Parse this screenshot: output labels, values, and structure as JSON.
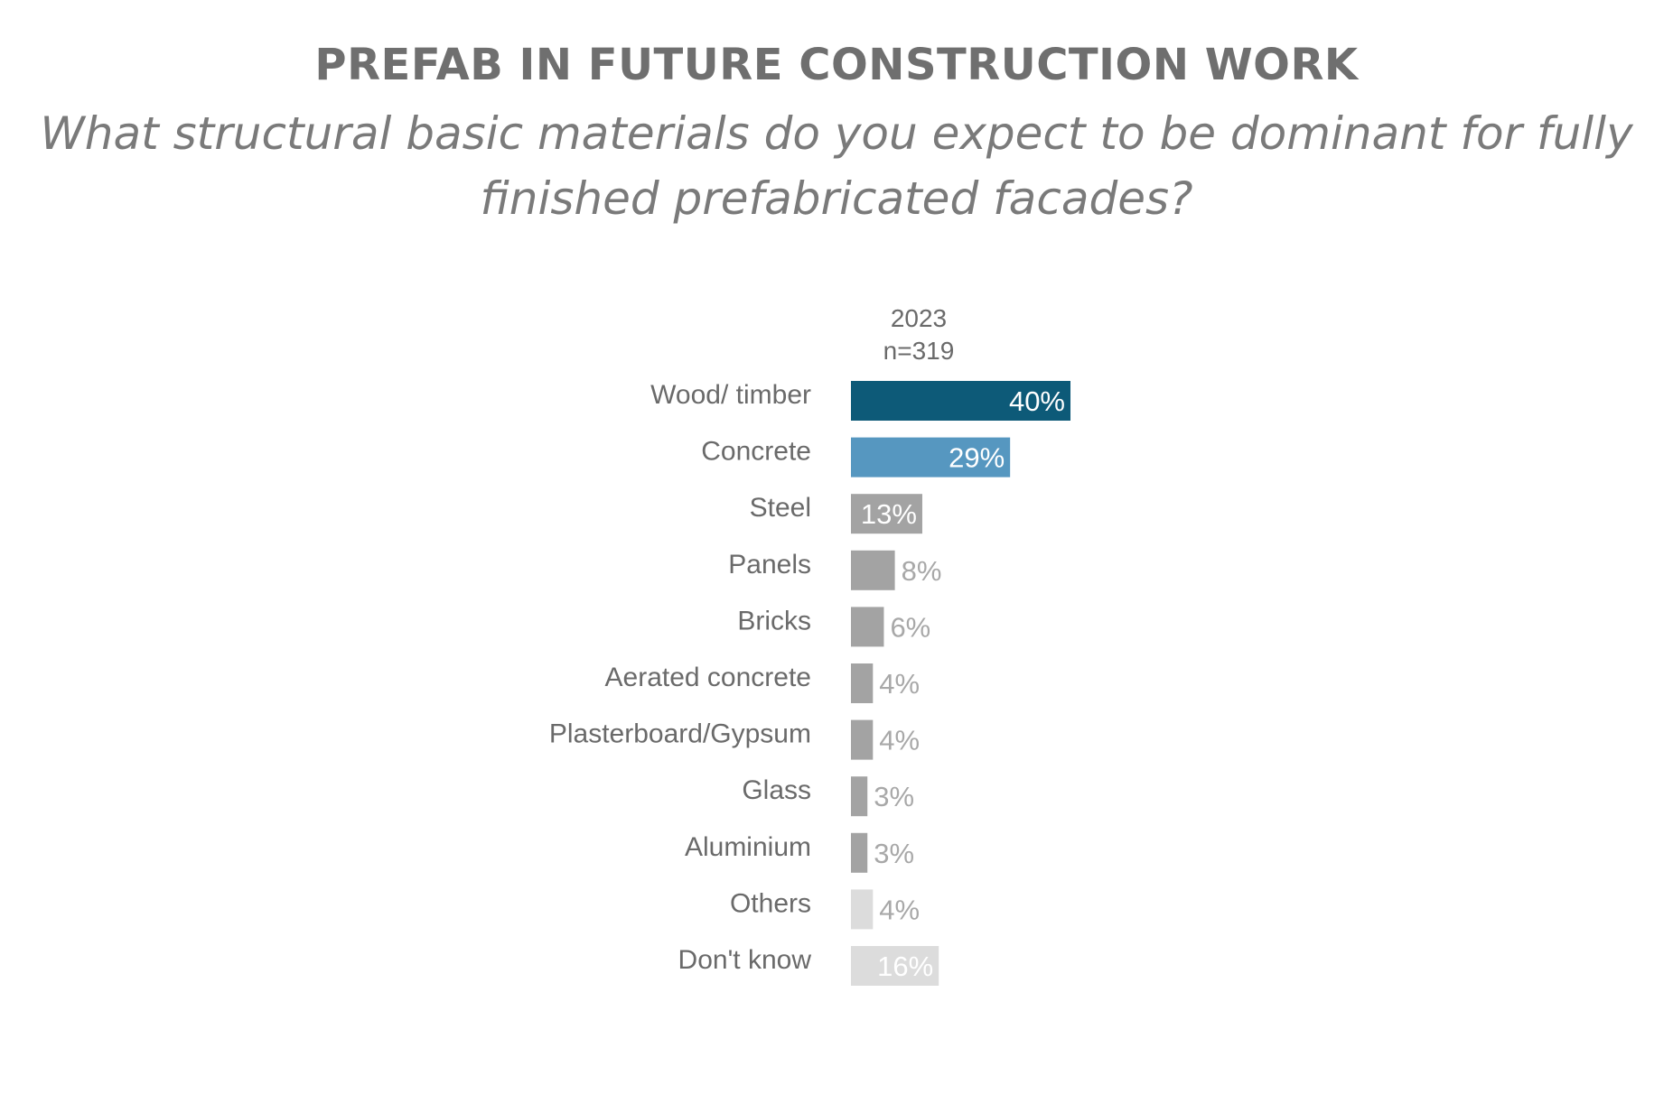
{
  "title": "PREFAB IN FUTURE CONSTRUCTION WORK",
  "subtitle": "What structural basic materials do you expect to be dominant for fully finished prefabricated facades?",
  "chart_data": {
    "type": "bar",
    "orientation": "horizontal",
    "series": [
      {
        "name": "2023",
        "sample": "n=319",
        "values": [
          40,
          29,
          13,
          8,
          6,
          4,
          4,
          3,
          3,
          4,
          16
        ]
      }
    ],
    "categories": [
      "Wood/ timber",
      "Concrete",
      "Steel",
      "Panels",
      "Bricks",
      "Aerated concrete",
      "Plasterboard/Gypsum",
      "Glass",
      "Aluminium",
      "Others",
      "Don't know"
    ],
    "value_labels": [
      "40%",
      "29%",
      "13%",
      "8%",
      "6%",
      "4%",
      "4%",
      "3%",
      "3%",
      "4%",
      "16%"
    ],
    "bar_colors": [
      "#0d5a78",
      "#5697c0",
      "#a3a3a3",
      "#a3a3a3",
      "#a3a3a3",
      "#a3a3a3",
      "#a3a3a3",
      "#a3a3a3",
      "#a3a3a3",
      "#dcdcdc",
      "#dcdcdc"
    ],
    "label_colors": [
      "#ffffff",
      "#ffffff",
      "#ffffff",
      "#a8a8a8",
      "#a8a8a8",
      "#a8a8a8",
      "#a8a8a8",
      "#a8a8a8",
      "#a8a8a8",
      "#a8a8a8",
      "#ffffff"
    ],
    "label_inside": [
      true,
      true,
      true,
      false,
      false,
      false,
      false,
      false,
      false,
      false,
      true
    ],
    "xlim": [
      0,
      40
    ],
    "grid": false,
    "legend": "none"
  }
}
